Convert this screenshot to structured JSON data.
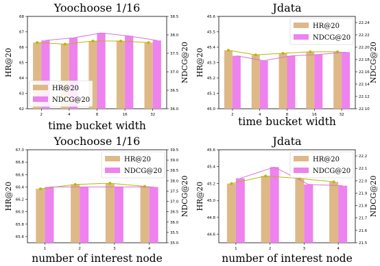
{
  "colors": {
    "hr_bar": "#deb887",
    "ndcg_bar": "#ee82ee",
    "hr_line": "#b5b800",
    "ndcg_line": "#da70d6"
  },
  "chart_data": [
    {
      "type": "bar",
      "title": "Yoochoose 1/16",
      "xlabel": "time bucket width",
      "ylabel": "HR@20",
      "ylabel_right": "NDCG@20",
      "categories": [
        "2",
        "4",
        "8",
        "16",
        "32"
      ],
      "ylim": [
        62,
        68
      ],
      "yticks": [
        "62",
        "63",
        "64",
        "65",
        "66",
        "67",
        "68"
      ],
      "ylim_right": [
        36.0,
        38.5
      ],
      "yticks_right": [
        "36.0",
        "36.5",
        "37.0",
        "37.5",
        "38.0",
        "38.5"
      ],
      "legend_position": "lower-left",
      "series": [
        {
          "name": "HR@20",
          "axis": "left",
          "values": [
            66.3,
            66.2,
            66.4,
            66.4,
            66.3
          ]
        },
        {
          "name": "NDCG@20",
          "axis": "right",
          "values": [
            37.85,
            37.92,
            38.05,
            37.97,
            37.85
          ]
        }
      ]
    },
    {
      "type": "bar",
      "title": "Jdata",
      "xlabel": "time bucket width",
      "ylabel": "HR@20",
      "ylabel_right": "NDCG@20",
      "categories": [
        "2",
        "4",
        "8",
        "16",
        "32"
      ],
      "ylim": [
        45.0,
        45.6
      ],
      "yticks": [
        "45.0",
        "45.1",
        "45.2",
        "45.3",
        "45.4",
        "45.5",
        "45.6"
      ],
      "ylim_right": [
        22.1,
        22.25
      ],
      "yticks_right": [
        "22.10",
        "22.12",
        "22.14",
        "22.16",
        "22.18",
        "22.20",
        "22.22",
        "22.24"
      ],
      "legend_position": "upper-right",
      "series": [
        {
          "name": "HR@20",
          "axis": "left",
          "values": [
            45.38,
            45.35,
            45.36,
            45.37,
            45.37
          ]
        },
        {
          "name": "NDCG@20",
          "axis": "right",
          "values": [
            22.186,
            22.178,
            22.186,
            22.188,
            22.192
          ]
        }
      ]
    },
    {
      "type": "bar",
      "title": "Yoochoose 1/16",
      "xlabel": "number of interest node",
      "ylabel": "HR@20",
      "ylabel_right": "NDCG@20",
      "categories": [
        "1",
        "2",
        "3",
        "4"
      ],
      "ylim": [
        65.5,
        67.0
      ],
      "yticks": [
        "65.6",
        "65.8",
        "66.0",
        "66.2",
        "66.4",
        "66.6",
        "66.8",
        "67.0"
      ],
      "ylim_right": [
        35.0,
        39.5
      ],
      "yticks_right": [
        "35.0",
        "35.5",
        "36.0",
        "36.5",
        "37.0",
        "37.5",
        "38.0",
        "38.5",
        "39.0",
        "39.5"
      ],
      "legend_position": "upper-right",
      "series": [
        {
          "name": "HR@20",
          "axis": "left",
          "values": [
            66.37,
            66.44,
            66.46,
            66.41
          ]
        },
        {
          "name": "NDCG@20",
          "axis": "right",
          "values": [
            37.7,
            37.7,
            37.7,
            37.7
          ]
        }
      ]
    },
    {
      "type": "bar",
      "title": "Jdata",
      "xlabel": "number of interest node",
      "ylabel": "HR@20",
      "ylabel_right": "NDCG@20",
      "categories": [
        "1",
        "2",
        "3",
        "4"
      ],
      "ylim": [
        44.5,
        45.6
      ],
      "yticks": [
        "44.6",
        "44.8",
        "45.0",
        "45.2",
        "45.4",
        "45.6"
      ],
      "ylim_right": [
        21.5,
        22.25
      ],
      "yticks_right": [
        "21.5",
        "21.6",
        "21.7",
        "21.8",
        "21.9",
        "22.0",
        "22.1",
        "22.2"
      ],
      "legend_position": "upper-right",
      "series": [
        {
          "name": "HR@20",
          "axis": "left",
          "values": [
            45.2,
            45.29,
            45.26,
            45.22
          ]
        },
        {
          "name": "NDCG@20",
          "axis": "right",
          "values": [
            22.02,
            22.11,
            21.97,
            21.96
          ]
        }
      ]
    }
  ]
}
